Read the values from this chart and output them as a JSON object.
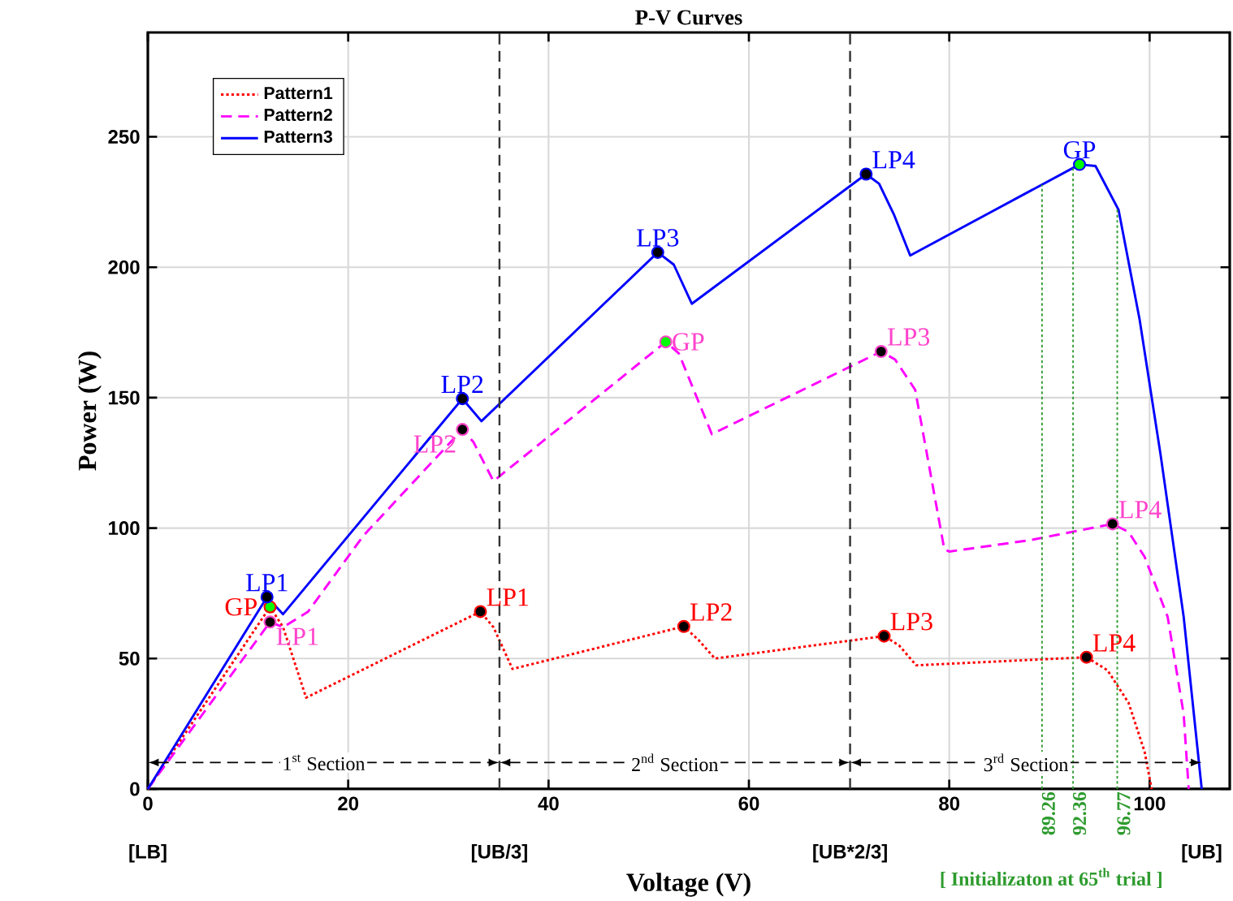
{
  "chart_data": {
    "type": "line",
    "title": "P-V Curves",
    "xlabel": "Voltage (V)",
    "ylabel": "Power (W)",
    "xlim": [
      0,
      108
    ],
    "ylim": [
      0,
      290
    ],
    "xticks": [
      0,
      20,
      40,
      60,
      80,
      100
    ],
    "yticks": [
      0,
      50,
      100,
      150,
      200,
      250
    ],
    "grid": true,
    "legend": "top left",
    "series": [
      {
        "name": "Pattern1",
        "color": "#ff0000",
        "line_style": "dotted",
        "x": [
          0,
          12.2,
          13.5,
          15.8,
          33.2,
          34.5,
          36.4,
          53.5,
          55,
          56.6,
          73.5,
          75,
          76.7,
          93.7,
          95.8,
          97.9,
          99.5,
          100.2
        ],
        "values": [
          0,
          69.8,
          62,
          35,
          68,
          62,
          46,
          62.3,
          57,
          50,
          58.6,
          55,
          47.4,
          50.5,
          45.5,
          33,
          14.3,
          0
        ]
      },
      {
        "name": "Pattern2",
        "color": "#ff00ff",
        "line_style": "dashed",
        "x": [
          0,
          12.2,
          13.5,
          16,
          21.5,
          31.4,
          32.5,
          34.5,
          51.7,
          53,
          56.3,
          73.2,
          74.6,
          76.6,
          79.5,
          80,
          88.1,
          96.3,
          97.9,
          99.5,
          101.8,
          103.4,
          103.9
        ],
        "values": [
          0,
          64,
          62,
          68,
          97,
          137.8,
          133,
          118,
          171.4,
          167,
          136,
          167.7,
          164.6,
          153,
          92,
          91,
          95.4,
          101.6,
          98.5,
          89,
          66,
          28.7,
          0
        ]
      },
      {
        "name": "Pattern3",
        "color": "#0000ff",
        "line_style": "solid",
        "x": [
          0,
          11.9,
          13.5,
          31.4,
          33.3,
          50.9,
          52.5,
          54.3,
          71.7,
          73,
          74.5,
          76.1,
          93.0,
          94.6,
          96.9,
          99.0,
          101.1,
          103.4,
          105.2
        ],
        "values": [
          0,
          73.6,
          67,
          149.6,
          141,
          205.7,
          201,
          186,
          235.7,
          232,
          220,
          204.5,
          239.4,
          238.8,
          222,
          180,
          128,
          66,
          0
        ]
      },
      {
        "type": "scatter",
        "marker": "circle",
        "color": "#ff0000",
        "colors": [
          "#00ff00",
          "#000000",
          "#000000",
          "#000000",
          "#000000"
        ],
        "x": [
          12.2,
          33.2,
          53.5,
          73.5,
          93.7
        ],
        "values": [
          69.8,
          68,
          62.3,
          58.6,
          50.5
        ]
      },
      {
        "type": "scatter",
        "marker": "circle",
        "color": "#ff44cc",
        "colors": [
          "#000000",
          "#000000",
          "#00ff00",
          "#000000",
          "#000000"
        ],
        "x": [
          12.2,
          31.4,
          51.7,
          73.2,
          96.3
        ],
        "values": [
          64,
          137.8,
          171.4,
          167.7,
          101.6
        ]
      },
      {
        "type": "scatter",
        "marker": "circle",
        "color": "#0000ff",
        "colors": [
          "#000000",
          "#000000",
          "#000000",
          "#000000",
          "#00ff00"
        ],
        "x": [
          11.9,
          31.4,
          50.9,
          71.7,
          93.0
        ],
        "values": [
          73.6,
          149.6,
          205.7,
          235.7,
          239.4
        ]
      }
    ],
    "ref_lines": [
      {
        "axis": "x",
        "value": 35.1,
        "color": "#333333",
        "line_style": "dashed"
      },
      {
        "axis": "x",
        "value": 70.1,
        "color": "#333333",
        "line_style": "dashed"
      },
      {
        "axis": "x",
        "value": 89.26,
        "label": "89.26",
        "color": "#2e9b2e",
        "line_style": "dotted"
      },
      {
        "axis": "x",
        "value": 92.36,
        "label": "92.36",
        "color": "#2e9b2e",
        "line_style": "dotted"
      },
      {
        "axis": "x",
        "value": 96.77,
        "label": "96.77",
        "color": "#2e9b2e",
        "line_style": "dotted"
      }
    ],
    "annotations": [
      {
        "text": "GP",
        "x": 12.2,
        "y": 69.8
      },
      {
        "text": "LP1",
        "x": 33.2,
        "y": 68
      },
      {
        "text": "LP2",
        "x": 53.5,
        "y": 62.3
      },
      {
        "text": "LP3",
        "x": 73.5,
        "y": 58.6
      },
      {
        "text": "LP4",
        "x": 93.7,
        "y": 50.5
      },
      {
        "text": "LP1",
        "x": 12.2,
        "y": 64
      },
      {
        "text": "LP2",
        "x": 31.4,
        "y": 137.8
      },
      {
        "text": "GP",
        "x": 51.7,
        "y": 171.4
      },
      {
        "text": "LP3",
        "x": 73.2,
        "y": 167.7
      },
      {
        "text": "LP4",
        "x": 96.3,
        "y": 101.6
      },
      {
        "text": "LP1",
        "x": 11.9,
        "y": 73.6
      },
      {
        "text": "LP2",
        "x": 31.4,
        "y": 149.6
      },
      {
        "text": "LP3",
        "x": 50.9,
        "y": 205.7
      },
      {
        "text": "LP4",
        "x": 71.7,
        "y": 235.7
      },
      {
        "text": "GP",
        "x": 93.0,
        "y": 239.4
      },
      {
        "text": "[LB]",
        "x": 0,
        "y": 0
      },
      {
        "text": "[UB/3]",
        "x": 35.1,
        "y": 0
      },
      {
        "text": "[UB*2/3]",
        "x": 70.1,
        "y": 0
      },
      {
        "text": "[UB]",
        "x": 105.2,
        "y": 0
      },
      "1$^{st}$ Section",
      "2$^{nd}$ Section",
      "3$^{rd}$ Section",
      "[ Initializaton at 65$^{th}$ trial ]"
    ]
  }
}
